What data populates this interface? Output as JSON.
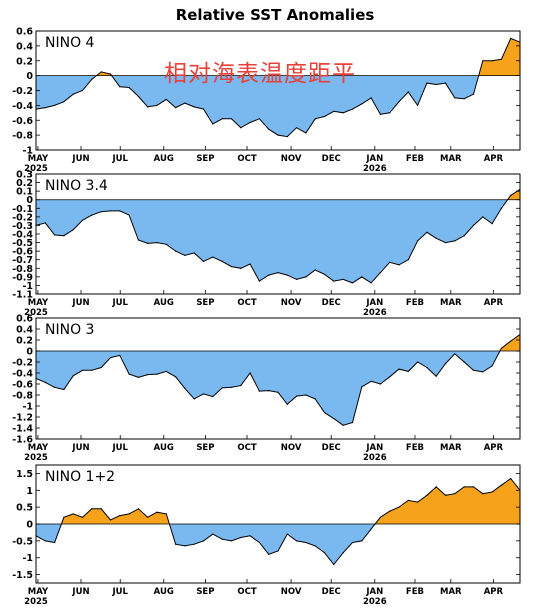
{
  "figure": {
    "title": "Relative SST Anomalies",
    "annotation": "相对海表温度距平",
    "colors": {
      "below": "#7ab8f0",
      "above": "#f7a21b",
      "line": "#000000"
    }
  },
  "chart_data": [
    {
      "type": "area",
      "title": "NINO 4",
      "ylim": [
        -1.0,
        0.6
      ],
      "yticks": [
        "0.6",
        "0.4",
        "0.2",
        "0",
        "-0.2",
        "-0.4",
        "-0.6",
        "-0.8",
        "-1"
      ],
      "xlabels": [
        "MAY",
        "JUN",
        "JUL",
        "AUG",
        "SEP",
        "OCT",
        "NOV",
        "DEC",
        "JAN",
        "FEB",
        "MAR",
        "APR"
      ],
      "years": [
        "2025",
        "2026"
      ],
      "values": [
        -0.45,
        -0.43,
        -0.4,
        -0.35,
        -0.25,
        -0.2,
        -0.05,
        0.05,
        0.02,
        -0.15,
        -0.16,
        -0.28,
        -0.42,
        -0.4,
        -0.32,
        -0.43,
        -0.37,
        -0.42,
        -0.45,
        -0.65,
        -0.58,
        -0.58,
        -0.7,
        -0.63,
        -0.58,
        -0.72,
        -0.8,
        -0.82,
        -0.7,
        -0.77,
        -0.58,
        -0.55,
        -0.48,
        -0.5,
        -0.45,
        -0.38,
        -0.3,
        -0.52,
        -0.5,
        -0.35,
        -0.22,
        -0.4,
        -0.1,
        -0.12,
        -0.1,
        -0.3,
        -0.31,
        -0.25,
        0.2,
        0.2,
        0.22,
        0.5,
        0.45
      ]
    },
    {
      "type": "area",
      "title": "NINO 3.4",
      "ylim": [
        -1.1,
        0.3
      ],
      "yticks": [
        "0.3",
        "0.2",
        "0.1",
        "0",
        "-0.1",
        "-0.2",
        "-0.3",
        "-0.4",
        "-0.5",
        "-0.6",
        "-0.7",
        "-0.8",
        "-0.9",
        "-1",
        "-1.1"
      ],
      "xlabels": [
        "MAY",
        "JUN",
        "JUL",
        "AUG",
        "SEP",
        "OCT",
        "NOV",
        "DEC",
        "JAN",
        "FEB",
        "MAR",
        "APR"
      ],
      "years": [
        "2025",
        "2026"
      ],
      "values": [
        -0.3,
        -0.27,
        -0.41,
        -0.42,
        -0.35,
        -0.24,
        -0.18,
        -0.14,
        -0.13,
        -0.13,
        -0.18,
        -0.47,
        -0.51,
        -0.5,
        -0.52,
        -0.6,
        -0.65,
        -0.62,
        -0.72,
        -0.67,
        -0.72,
        -0.78,
        -0.8,
        -0.75,
        -0.95,
        -0.88,
        -0.85,
        -0.88,
        -0.93,
        -0.9,
        -0.82,
        -0.87,
        -0.95,
        -0.93,
        -0.97,
        -0.9,
        -0.97,
        -0.85,
        -0.73,
        -0.76,
        -0.7,
        -0.48,
        -0.38,
        -0.45,
        -0.5,
        -0.48,
        -0.42,
        -0.3,
        -0.2,
        -0.28,
        -0.1,
        0.05,
        0.12
      ]
    },
    {
      "type": "area",
      "title": "NINO 3",
      "ylim": [
        -1.6,
        0.6
      ],
      "yticks": [
        "0.6",
        "0.4",
        "0.2",
        "0",
        "-0.2",
        "-0.4",
        "-0.6",
        "-0.8",
        "-1",
        "-1.2",
        "-1.4",
        "-1.6"
      ],
      "xlabels": [
        "MAY",
        "JUN",
        "JUL",
        "AUG",
        "SEP",
        "OCT",
        "NOV",
        "DEC",
        "JAN",
        "FEB",
        "MAR",
        "APR"
      ],
      "years": [
        "2025",
        "2026"
      ],
      "values": [
        -0.5,
        -0.57,
        -0.66,
        -0.7,
        -0.45,
        -0.35,
        -0.35,
        -0.3,
        -0.12,
        -0.08,
        -0.42,
        -0.48,
        -0.43,
        -0.42,
        -0.37,
        -0.47,
        -0.68,
        -0.87,
        -0.78,
        -0.83,
        -0.67,
        -0.66,
        -0.63,
        -0.4,
        -0.73,
        -0.72,
        -0.75,
        -0.97,
        -0.82,
        -0.8,
        -0.87,
        -1.12,
        -1.23,
        -1.35,
        -1.3,
        -0.65,
        -0.55,
        -0.6,
        -0.47,
        -0.33,
        -0.37,
        -0.2,
        -0.3,
        -0.46,
        -0.23,
        -0.05,
        -0.2,
        -0.35,
        -0.38,
        -0.27,
        0.05,
        0.18,
        0.3
      ]
    },
    {
      "type": "area",
      "title": "NINO 1+2",
      "ylim": [
        -1.75,
        1.75
      ],
      "yticks": [
        "1.5",
        "1",
        "0.5",
        "0",
        "-0.5",
        "-1",
        "-1.5"
      ],
      "xlabels": [
        "MAY",
        "JUN",
        "JUL",
        "AUG",
        "SEP",
        "OCT",
        "NOV",
        "DEC",
        "JAN",
        "FEB",
        "MAR",
        "APR"
      ],
      "years": [
        "2025",
        "2026"
      ],
      "values": [
        -0.35,
        -0.5,
        -0.55,
        0.2,
        0.3,
        0.2,
        0.45,
        0.45,
        0.12,
        0.25,
        0.3,
        0.45,
        0.2,
        0.35,
        0.3,
        -0.6,
        -0.65,
        -0.6,
        -0.5,
        -0.3,
        -0.45,
        -0.5,
        -0.4,
        -0.35,
        -0.55,
        -0.9,
        -0.8,
        -0.3,
        -0.5,
        -0.55,
        -0.65,
        -0.85,
        -1.2,
        -0.85,
        -0.55,
        -0.5,
        -0.15,
        0.2,
        0.38,
        0.5,
        0.7,
        0.65,
        0.85,
        1.1,
        0.85,
        0.9,
        1.1,
        1.1,
        0.9,
        0.95,
        1.15,
        1.35,
        1.0
      ]
    }
  ]
}
